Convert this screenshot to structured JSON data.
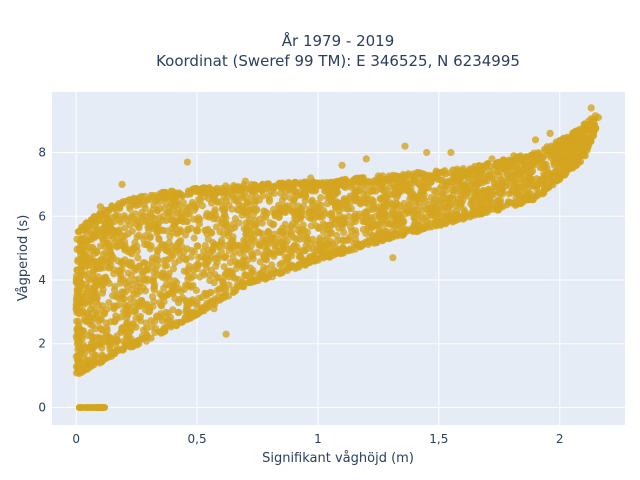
{
  "chart_data": {
    "type": "scatter",
    "title_line1": "År 1979 - 2019",
    "title_line2": "Koordinat (Sweref 99 TM): E 346525, N 6234995",
    "xlabel": "Signifikant våghöjd (m)",
    "ylabel": "Vågperiod (s)",
    "xlim": [
      -0.1,
      2.27
    ],
    "ylim": [
      -0.55,
      9.9
    ],
    "x_ticks": [
      {
        "value": 0,
        "label": "0"
      },
      {
        "value": 0.5,
        "label": "0,5"
      },
      {
        "value": 1,
        "label": "1"
      },
      {
        "value": 1.5,
        "label": "1,5"
      },
      {
        "value": 2,
        "label": "2"
      }
    ],
    "y_ticks": [
      {
        "value": 0,
        "label": "0"
      },
      {
        "value": 2,
        "label": "2"
      },
      {
        "value": 4,
        "label": "4"
      },
      {
        "value": 6,
        "label": "6"
      },
      {
        "value": 8,
        "label": "8"
      }
    ],
    "grid": true,
    "background": "#e5ecf6",
    "marker_color": "#d4a520",
    "band_lower": [
      [
        0.0,
        1.0
      ],
      [
        0.1,
        1.4
      ],
      [
        0.2,
        1.8
      ],
      [
        0.3,
        2.1
      ],
      [
        0.5,
        2.9
      ],
      [
        0.7,
        3.8
      ],
      [
        1.0,
        4.6
      ],
      [
        1.3,
        5.3
      ],
      [
        1.6,
        5.9
      ],
      [
        1.9,
        6.5
      ],
      [
        2.1,
        7.8
      ],
      [
        2.15,
        8.7
      ]
    ],
    "band_upper": [
      [
        0.0,
        5.5
      ],
      [
        0.1,
        6.2
      ],
      [
        0.2,
        6.5
      ],
      [
        0.3,
        6.7
      ],
      [
        0.5,
        6.9
      ],
      [
        0.7,
        7.0
      ],
      [
        1.0,
        7.1
      ],
      [
        1.3,
        7.3
      ],
      [
        1.6,
        7.5
      ],
      [
        1.9,
        8.0
      ],
      [
        2.05,
        8.6
      ],
      [
        2.15,
        9.2
      ]
    ],
    "zero_period_x_range": [
      0.01,
      0.12
    ],
    "outliers": [
      {
        "x": 0.46,
        "y": 7.7
      },
      {
        "x": 0.19,
        "y": 7.0
      },
      {
        "x": 0.1,
        "y": 6.3
      },
      {
        "x": 1.1,
        "y": 7.6
      },
      {
        "x": 1.2,
        "y": 7.8
      },
      {
        "x": 1.36,
        "y": 8.2
      },
      {
        "x": 1.45,
        "y": 8.0
      },
      {
        "x": 1.55,
        "y": 8.0
      },
      {
        "x": 1.72,
        "y": 7.8
      },
      {
        "x": 1.81,
        "y": 7.9
      },
      {
        "x": 1.9,
        "y": 8.4
      },
      {
        "x": 1.96,
        "y": 8.6
      },
      {
        "x": 2.13,
        "y": 9.4
      },
      {
        "x": 2.16,
        "y": 9.1
      },
      {
        "x": 1.31,
        "y": 4.7
      },
      {
        "x": 0.57,
        "y": 3.1
      },
      {
        "x": 0.62,
        "y": 2.3
      },
      {
        "x": 0.32,
        "y": 6.6
      },
      {
        "x": 0.7,
        "y": 7.1
      },
      {
        "x": 0.97,
        "y": 7.2
      }
    ]
  }
}
